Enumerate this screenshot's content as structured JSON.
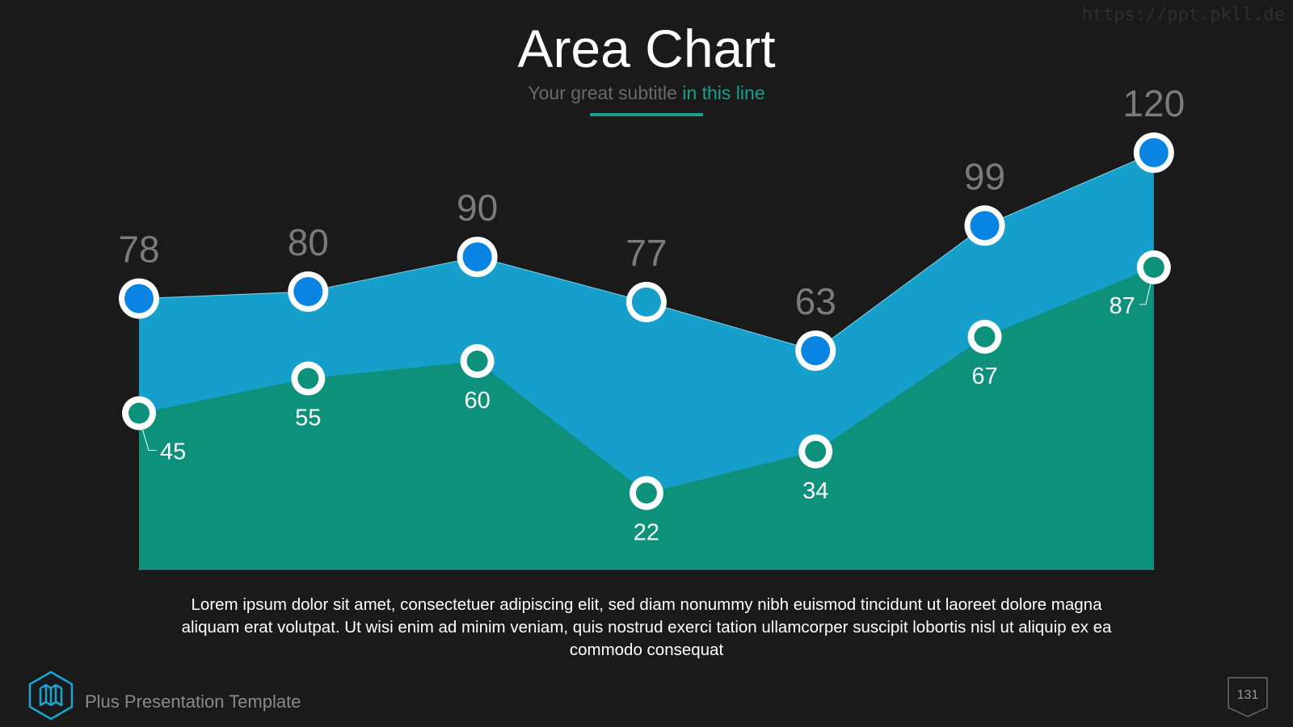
{
  "watermark": "https://ppt.pkll.de",
  "title": "Area Chart",
  "subtitle": {
    "main": "Your great subtitle ",
    "accent": "in this line"
  },
  "body_text": "Lorem ipsum dolor sit amet, consectetuer adipiscing elit, sed diam nonummy nibh euismod tincidunt ut laoreet dolore magna aliquam erat volutpat. Ut wisi enim ad minim veniam, quis nostrud exerci tation ullamcorper suscipit lobortis nisl ut aliquip ex ea commodo consequat",
  "footer": {
    "label": "Plus Presentation Template",
    "page_number": "131",
    "logo_icon": "map-icon"
  },
  "colors": {
    "background": "#1a1a1b",
    "upper_area": "#169fcb",
    "lower_area": "#0d917b",
    "upper_dot": "#0a84e3",
    "lower_dot": "#0d917b",
    "accent": "#16a08b",
    "upper_label": "#7b7b7b"
  },
  "chart_data": {
    "type": "area",
    "x": [
      1,
      2,
      3,
      4,
      5,
      6,
      7
    ],
    "series": [
      {
        "values": [
          78,
          80,
          90,
          77,
          63,
          99,
          120
        ]
      },
      {
        "values": [
          45,
          55,
          60,
          22,
          34,
          67,
          87
        ]
      }
    ],
    "grid": false,
    "legend": "none"
  }
}
